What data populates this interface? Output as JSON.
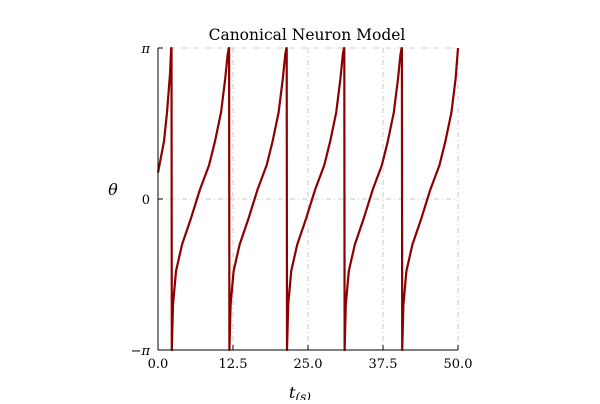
{
  "chart_data": {
    "type": "line",
    "title": "Canonical Neuron Model",
    "xlabel": "t",
    "xlabel_subscript": "(s)",
    "ylabel": "θ",
    "xlim": [
      0,
      50
    ],
    "ylim": [
      -3.14159,
      3.14159
    ],
    "x_ticks": [
      {
        "value": 0,
        "label": "0.0"
      },
      {
        "value": 12.5,
        "label": "12.5"
      },
      {
        "value": 25,
        "label": "25.0"
      },
      {
        "value": 37.5,
        "label": "37.5"
      },
      {
        "value": 50,
        "label": "50.0"
      }
    ],
    "y_ticks": [
      {
        "value": -3.14159,
        "label": "−π"
      },
      {
        "value": 0,
        "label": "0"
      },
      {
        "value": 3.14159,
        "label": "π"
      }
    ],
    "grid": true,
    "line_color": "#8b0000",
    "series": [
      {
        "x": [
          0,
          1.0,
          1.5,
          2.0,
          2.2,
          2.25,
          2.3,
          2.5,
          3.0,
          4.0,
          5.5,
          7.0,
          8.5,
          9.5,
          10.5,
          11.2,
          11.6,
          11.8,
          11.85,
          11.9,
          12.1,
          12.6,
          13.6,
          15.1,
          16.6,
          18.1,
          19.1,
          20.1,
          20.8,
          21.2,
          21.4,
          21.45,
          21.5,
          21.7,
          22.2,
          23.2,
          24.7,
          26.2,
          27.7,
          28.7,
          29.7,
          30.4,
          30.8,
          31.0,
          31.05,
          31.1,
          31.3,
          31.8,
          32.8,
          34.3,
          35.8,
          37.3,
          38.3,
          39.3,
          40.0,
          40.4,
          40.6,
          40.65,
          40.7,
          40.9,
          41.4,
          42.4,
          43.9,
          45.4,
          46.9,
          47.9,
          48.9,
          49.6,
          50.0
        ],
        "y": [
          0.55,
          1.2,
          1.8,
          2.6,
          3.14,
          3.14,
          -3.14,
          -2.2,
          -1.5,
          -0.95,
          -0.4,
          0.2,
          0.7,
          1.2,
          1.8,
          2.5,
          3.0,
          3.14,
          3.14,
          -3.14,
          -2.2,
          -1.5,
          -0.95,
          -0.4,
          0.2,
          0.7,
          1.2,
          1.8,
          2.5,
          3.0,
          3.14,
          3.14,
          -3.14,
          -2.2,
          -1.5,
          -0.95,
          -0.4,
          0.2,
          0.7,
          1.2,
          1.8,
          2.5,
          3.0,
          3.14,
          3.14,
          -3.14,
          -2.2,
          -1.5,
          -0.95,
          -0.4,
          0.2,
          0.7,
          1.2,
          1.8,
          2.5,
          3.0,
          3.14,
          3.14,
          -3.14,
          -2.2,
          -1.5,
          -0.95,
          -0.4,
          0.2,
          0.7,
          1.2,
          1.8,
          2.5,
          3.14
        ]
      }
    ]
  }
}
